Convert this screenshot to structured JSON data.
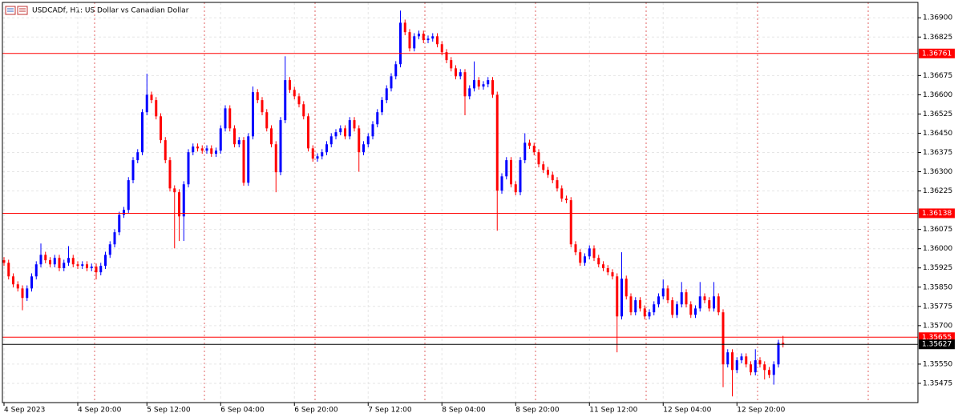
{
  "chart_data": {
    "type": "candlestick",
    "title": "USDCADf, H1:  US Dollar vs Canadian Dollar",
    "up_color": "#0000ff",
    "down_color": "#ff0000",
    "grid": true,
    "ylim": [
      1.354,
      1.3696
    ],
    "yticks": [
      {
        "value": 1.369,
        "label": "1.36900"
      },
      {
        "value": 1.36825,
        "label": "1.36825"
      },
      {
        "value": 1.36675,
        "label": "1.36675"
      },
      {
        "value": 1.366,
        "label": "1.36600"
      },
      {
        "value": 1.36525,
        "label": "1.36525"
      },
      {
        "value": 1.3645,
        "label": "1.36450"
      },
      {
        "value": 1.36375,
        "label": "1.36375"
      },
      {
        "value": 1.363,
        "label": "1.36300"
      },
      {
        "value": 1.36225,
        "label": "1.36225"
      },
      {
        "value": 1.36075,
        "label": "1.36075"
      },
      {
        "value": 1.36,
        "label": "1.36000"
      },
      {
        "value": 1.35925,
        "label": "1.35925"
      },
      {
        "value": 1.3585,
        "label": "1.35850"
      },
      {
        "value": 1.35775,
        "label": "1.35775"
      },
      {
        "value": 1.357,
        "label": "1.35700"
      },
      {
        "value": 1.3555,
        "label": "1.35550"
      },
      {
        "value": 1.35475,
        "label": "1.35475"
      }
    ],
    "xticks": [
      {
        "value": 0,
        "label": "4 Sep 2023"
      },
      {
        "value": 16,
        "label": "4 Sep 20:00"
      },
      {
        "value": 31,
        "label": "5 Sep 12:00"
      },
      {
        "value": 47,
        "label": "6 Sep 04:00"
      },
      {
        "value": 63,
        "label": "6 Sep 20:00"
      },
      {
        "value": 79,
        "label": "7 Sep 12:00"
      },
      {
        "value": 95,
        "label": "8 Sep 04:00"
      },
      {
        "value": 111,
        "label": "8 Sep 20:00"
      },
      {
        "value": 127,
        "label": "11 Sep 12:00"
      },
      {
        "value": 143,
        "label": "12 Sep 04:00"
      },
      {
        "value": 159,
        "label": "12 Sep 20:00"
      }
    ],
    "levels": [
      {
        "value": 1.36761,
        "color": "#ff0000"
      },
      {
        "value": 1.36138,
        "color": "#ff0000"
      },
      {
        "value": 1.35655,
        "color": "#ff0000"
      },
      {
        "value": 1.35627,
        "color": "#000000"
      }
    ],
    "open": [
      1.35955,
      1.35945,
      1.35892,
      1.35861,
      1.35845,
      1.35808,
      1.35845,
      1.35892,
      1.35939,
      1.35976,
      1.35955,
      1.35939,
      1.35964,
      1.35924,
      1.35945,
      1.35964,
      1.35939,
      1.35933,
      1.35939,
      1.35924,
      1.3593,
      1.35908,
      1.35933,
      1.35976,
      1.36017,
      1.36064,
      1.36132,
      1.36151,
      1.36267,
      1.36345,
      1.36376,
      1.36532,
      1.366,
      1.36579,
      1.36516,
      1.36423,
      1.36345,
      1.36235,
      1.3622,
      1.36126,
      1.36251,
      1.36376,
      1.36398,
      1.36391,
      1.36382,
      1.36391,
      1.3637,
      1.36382,
      1.36469,
      1.36547,
      1.36469,
      1.36407,
      1.36423,
      1.36257,
      1.36438,
      1.3661,
      1.36579,
      1.36532,
      1.36469,
      1.36407,
      1.36298,
      1.36501,
      1.36657,
      1.36619,
      1.36594,
      1.36563,
      1.36516,
      1.36391,
      1.36351,
      1.3636,
      1.36376,
      1.36407,
      1.36438,
      1.36454,
      1.36469,
      1.36438,
      1.36501,
      1.36469,
      1.36376,
      1.36407,
      1.36438,
      1.36485,
      1.36532,
      1.36579,
      1.36625,
      1.36672,
      1.36719,
      1.36881,
      1.36844,
      1.36781,
      1.36828,
      1.36838,
      1.36813,
      1.36819,
      1.36828,
      1.36797,
      1.36766,
      1.36735,
      1.36703,
      1.36672,
      1.36688,
      1.36594,
      1.36625,
      1.36657,
      1.36632,
      1.36641,
      1.36657,
      1.366,
      1.36226,
      1.36282,
      1.36345,
      1.36251,
      1.3622,
      1.36345,
      1.36413,
      1.36401,
      1.36376,
      1.36329,
      1.36307,
      1.36288,
      1.36267,
      1.36235,
      1.36195,
      1.36189,
      1.36017,
      1.35986,
      1.35945,
      1.3597,
      1.36001,
      1.35964,
      1.35939,
      1.35924,
      1.35908,
      1.35892,
      1.35736,
      1.35883,
      1.35814,
      1.35752,
      1.35799,
      1.35767,
      1.35736,
      1.35752,
      1.35783,
      1.35814,
      1.35845,
      1.35799,
      1.35742,
      1.35783,
      1.3583,
      1.35783,
      1.35742,
      1.35767,
      1.35814,
      1.35799,
      1.35767,
      1.35814,
      1.35752,
      1.35549,
      1.35596,
      1.35527,
      1.35565,
      1.3558,
      1.35549,
      1.35518,
      1.35565,
      1.35549,
      1.35527,
      1.35508,
      1.35549,
      1.35633
    ],
    "high": [
      1.35967,
      1.35957,
      1.35904,
      1.35873,
      1.35857,
      1.35857,
      1.35904,
      1.35951,
      1.3602,
      1.35988,
      1.35967,
      1.35976,
      1.35976,
      1.35957,
      1.3601,
      1.35976,
      1.35951,
      1.35951,
      1.35951,
      1.35942,
      1.35942,
      1.35945,
      1.35988,
      1.36029,
      1.36076,
      1.36144,
      1.36163,
      1.36279,
      1.36357,
      1.36388,
      1.36544,
      1.36682,
      1.36612,
      1.36591,
      1.36528,
      1.36435,
      1.36357,
      1.36247,
      1.36232,
      1.36263,
      1.36388,
      1.3641,
      1.3641,
      1.36403,
      1.36403,
      1.36403,
      1.36394,
      1.36481,
      1.36559,
      1.36559,
      1.36481,
      1.36435,
      1.36435,
      1.3645,
      1.36632,
      1.36622,
      1.36591,
      1.36544,
      1.36481,
      1.36419,
      1.36513,
      1.3675,
      1.36669,
      1.36631,
      1.36606,
      1.36575,
      1.36528,
      1.36403,
      1.36372,
      1.36388,
      1.36419,
      1.3645,
      1.36466,
      1.36481,
      1.36481,
      1.36513,
      1.36513,
      1.36481,
      1.36419,
      1.3645,
      1.36497,
      1.36544,
      1.36591,
      1.36637,
      1.36684,
      1.36731,
      1.36928,
      1.36893,
      1.36856,
      1.3684,
      1.3685,
      1.3685,
      1.36831,
      1.3684,
      1.3684,
      1.36809,
      1.36778,
      1.36747,
      1.36715,
      1.367,
      1.367,
      1.36637,
      1.3673,
      1.36669,
      1.36653,
      1.36669,
      1.36669,
      1.36612,
      1.36294,
      1.36357,
      1.36357,
      1.36263,
      1.36357,
      1.3645,
      1.36425,
      1.36413,
      1.36388,
      1.36341,
      1.36319,
      1.363,
      1.36279,
      1.36247,
      1.36207,
      1.36201,
      1.36029,
      1.35998,
      1.35982,
      1.36013,
      1.36013,
      1.35976,
      1.35951,
      1.35936,
      1.3592,
      1.35904,
      1.35986,
      1.35895,
      1.35826,
      1.35811,
      1.35811,
      1.35779,
      1.35764,
      1.35795,
      1.35826,
      1.3588,
      1.35857,
      1.35811,
      1.35795,
      1.3587,
      1.35842,
      1.35795,
      1.35779,
      1.3587,
      1.35826,
      1.35811,
      1.3587,
      1.35826,
      1.35764,
      1.35608,
      1.35608,
      1.35577,
      1.35592,
      1.35592,
      1.35561,
      1.35608,
      1.35577,
      1.35561,
      1.35539,
      1.35561,
      1.35645,
      1.3566
    ],
    "low": [
      1.35933,
      1.3588,
      1.35849,
      1.35833,
      1.3576,
      1.35796,
      1.35833,
      1.3588,
      1.35927,
      1.35943,
      1.35927,
      1.35927,
      1.35912,
      1.35912,
      1.35933,
      1.35927,
      1.35921,
      1.35921,
      1.35912,
      1.35912,
      1.3588,
      1.35896,
      1.35921,
      1.35964,
      1.36005,
      1.36052,
      1.3612,
      1.36139,
      1.36255,
      1.36333,
      1.36364,
      1.3652,
      1.36567,
      1.36504,
      1.36411,
      1.36333,
      1.36223,
      1.36001,
      1.3603,
      1.3603,
      1.36239,
      1.36364,
      1.36379,
      1.3637,
      1.3637,
      1.36358,
      1.36358,
      1.3637,
      1.36457,
      1.36457,
      1.36395,
      1.36395,
      1.36245,
      1.36245,
      1.36426,
      1.36567,
      1.3652,
      1.36457,
      1.36395,
      1.3622,
      1.36286,
      1.36489,
      1.36607,
      1.36582,
      1.36551,
      1.36504,
      1.36379,
      1.36339,
      1.36339,
      1.36348,
      1.36364,
      1.36395,
      1.36426,
      1.36442,
      1.36426,
      1.36426,
      1.36457,
      1.363,
      1.36364,
      1.36395,
      1.36426,
      1.36473,
      1.3652,
      1.36567,
      1.36613,
      1.3666,
      1.36707,
      1.36832,
      1.36769,
      1.36769,
      1.36816,
      1.36801,
      1.36801,
      1.36807,
      1.36785,
      1.36754,
      1.36723,
      1.36691,
      1.3666,
      1.3666,
      1.3652,
      1.36582,
      1.36613,
      1.3662,
      1.3662,
      1.36629,
      1.36588,
      1.3607,
      1.36214,
      1.3627,
      1.36239,
      1.36208,
      1.36208,
      1.36333,
      1.36389,
      1.36364,
      1.36317,
      1.36295,
      1.36276,
      1.36255,
      1.36223,
      1.36183,
      1.36177,
      1.36005,
      1.35974,
      1.35933,
      1.35933,
      1.35958,
      1.35952,
      1.35927,
      1.35912,
      1.35896,
      1.3588,
      1.35596,
      1.35724,
      1.35802,
      1.3574,
      1.3574,
      1.35755,
      1.35724,
      1.35724,
      1.3574,
      1.35771,
      1.35802,
      1.35787,
      1.3573,
      1.3573,
      1.35771,
      1.35771,
      1.3573,
      1.3573,
      1.35755,
      1.35787,
      1.35755,
      1.35755,
      1.3574,
      1.3546,
      1.35537,
      1.35424,
      1.35515,
      1.35553,
      1.35537,
      1.35506,
      1.35506,
      1.35537,
      1.3549,
      1.35496,
      1.3547,
      1.35537,
      1.35615
    ],
    "close": [
      1.35945,
      1.35892,
      1.35861,
      1.35845,
      1.35808,
      1.35845,
      1.35892,
      1.35939,
      1.35976,
      1.35955,
      1.35939,
      1.35964,
      1.35924,
      1.35945,
      1.35964,
      1.35939,
      1.35933,
      1.35939,
      1.35924,
      1.3593,
      1.35908,
      1.35933,
      1.35976,
      1.36017,
      1.36064,
      1.36132,
      1.36151,
      1.36267,
      1.36345,
      1.36376,
      1.36532,
      1.366,
      1.36579,
      1.36516,
      1.36423,
      1.36345,
      1.36235,
      1.3622,
      1.36126,
      1.36251,
      1.36376,
      1.36398,
      1.36391,
      1.36382,
      1.36391,
      1.3637,
      1.36382,
      1.36469,
      1.36547,
      1.36469,
      1.36407,
      1.36423,
      1.36257,
      1.36438,
      1.3661,
      1.36579,
      1.36532,
      1.36469,
      1.36407,
      1.36298,
      1.36501,
      1.36657,
      1.36619,
      1.36594,
      1.36563,
      1.36516,
      1.36391,
      1.36351,
      1.3636,
      1.36376,
      1.36407,
      1.36438,
      1.36454,
      1.36469,
      1.36438,
      1.36501,
      1.36469,
      1.36376,
      1.36407,
      1.36438,
      1.36485,
      1.36532,
      1.36579,
      1.36625,
      1.36672,
      1.36719,
      1.36881,
      1.36844,
      1.36781,
      1.36828,
      1.36838,
      1.36813,
      1.36819,
      1.36828,
      1.36797,
      1.36766,
      1.36735,
      1.36703,
      1.36672,
      1.36688,
      1.36594,
      1.36625,
      1.36657,
      1.36632,
      1.36641,
      1.36657,
      1.366,
      1.36226,
      1.36282,
      1.36345,
      1.36251,
      1.3622,
      1.36345,
      1.36413,
      1.36401,
      1.36376,
      1.36329,
      1.36307,
      1.36288,
      1.36267,
      1.36235,
      1.36195,
      1.36189,
      1.36017,
      1.35986,
      1.35945,
      1.3597,
      1.36001,
      1.35964,
      1.35939,
      1.35924,
      1.35908,
      1.35892,
      1.35736,
      1.35883,
      1.35814,
      1.35752,
      1.35799,
      1.35767,
      1.35736,
      1.35752,
      1.35783,
      1.35814,
      1.35845,
      1.35799,
      1.35742,
      1.35783,
      1.3583,
      1.35783,
      1.35742,
      1.35767,
      1.35814,
      1.35799,
      1.35767,
      1.35814,
      1.35752,
      1.35549,
      1.35596,
      1.35527,
      1.35565,
      1.3558,
      1.35549,
      1.35518,
      1.35565,
      1.35549,
      1.35527,
      1.35508,
      1.35549,
      1.35633,
      1.35627
    ]
  }
}
